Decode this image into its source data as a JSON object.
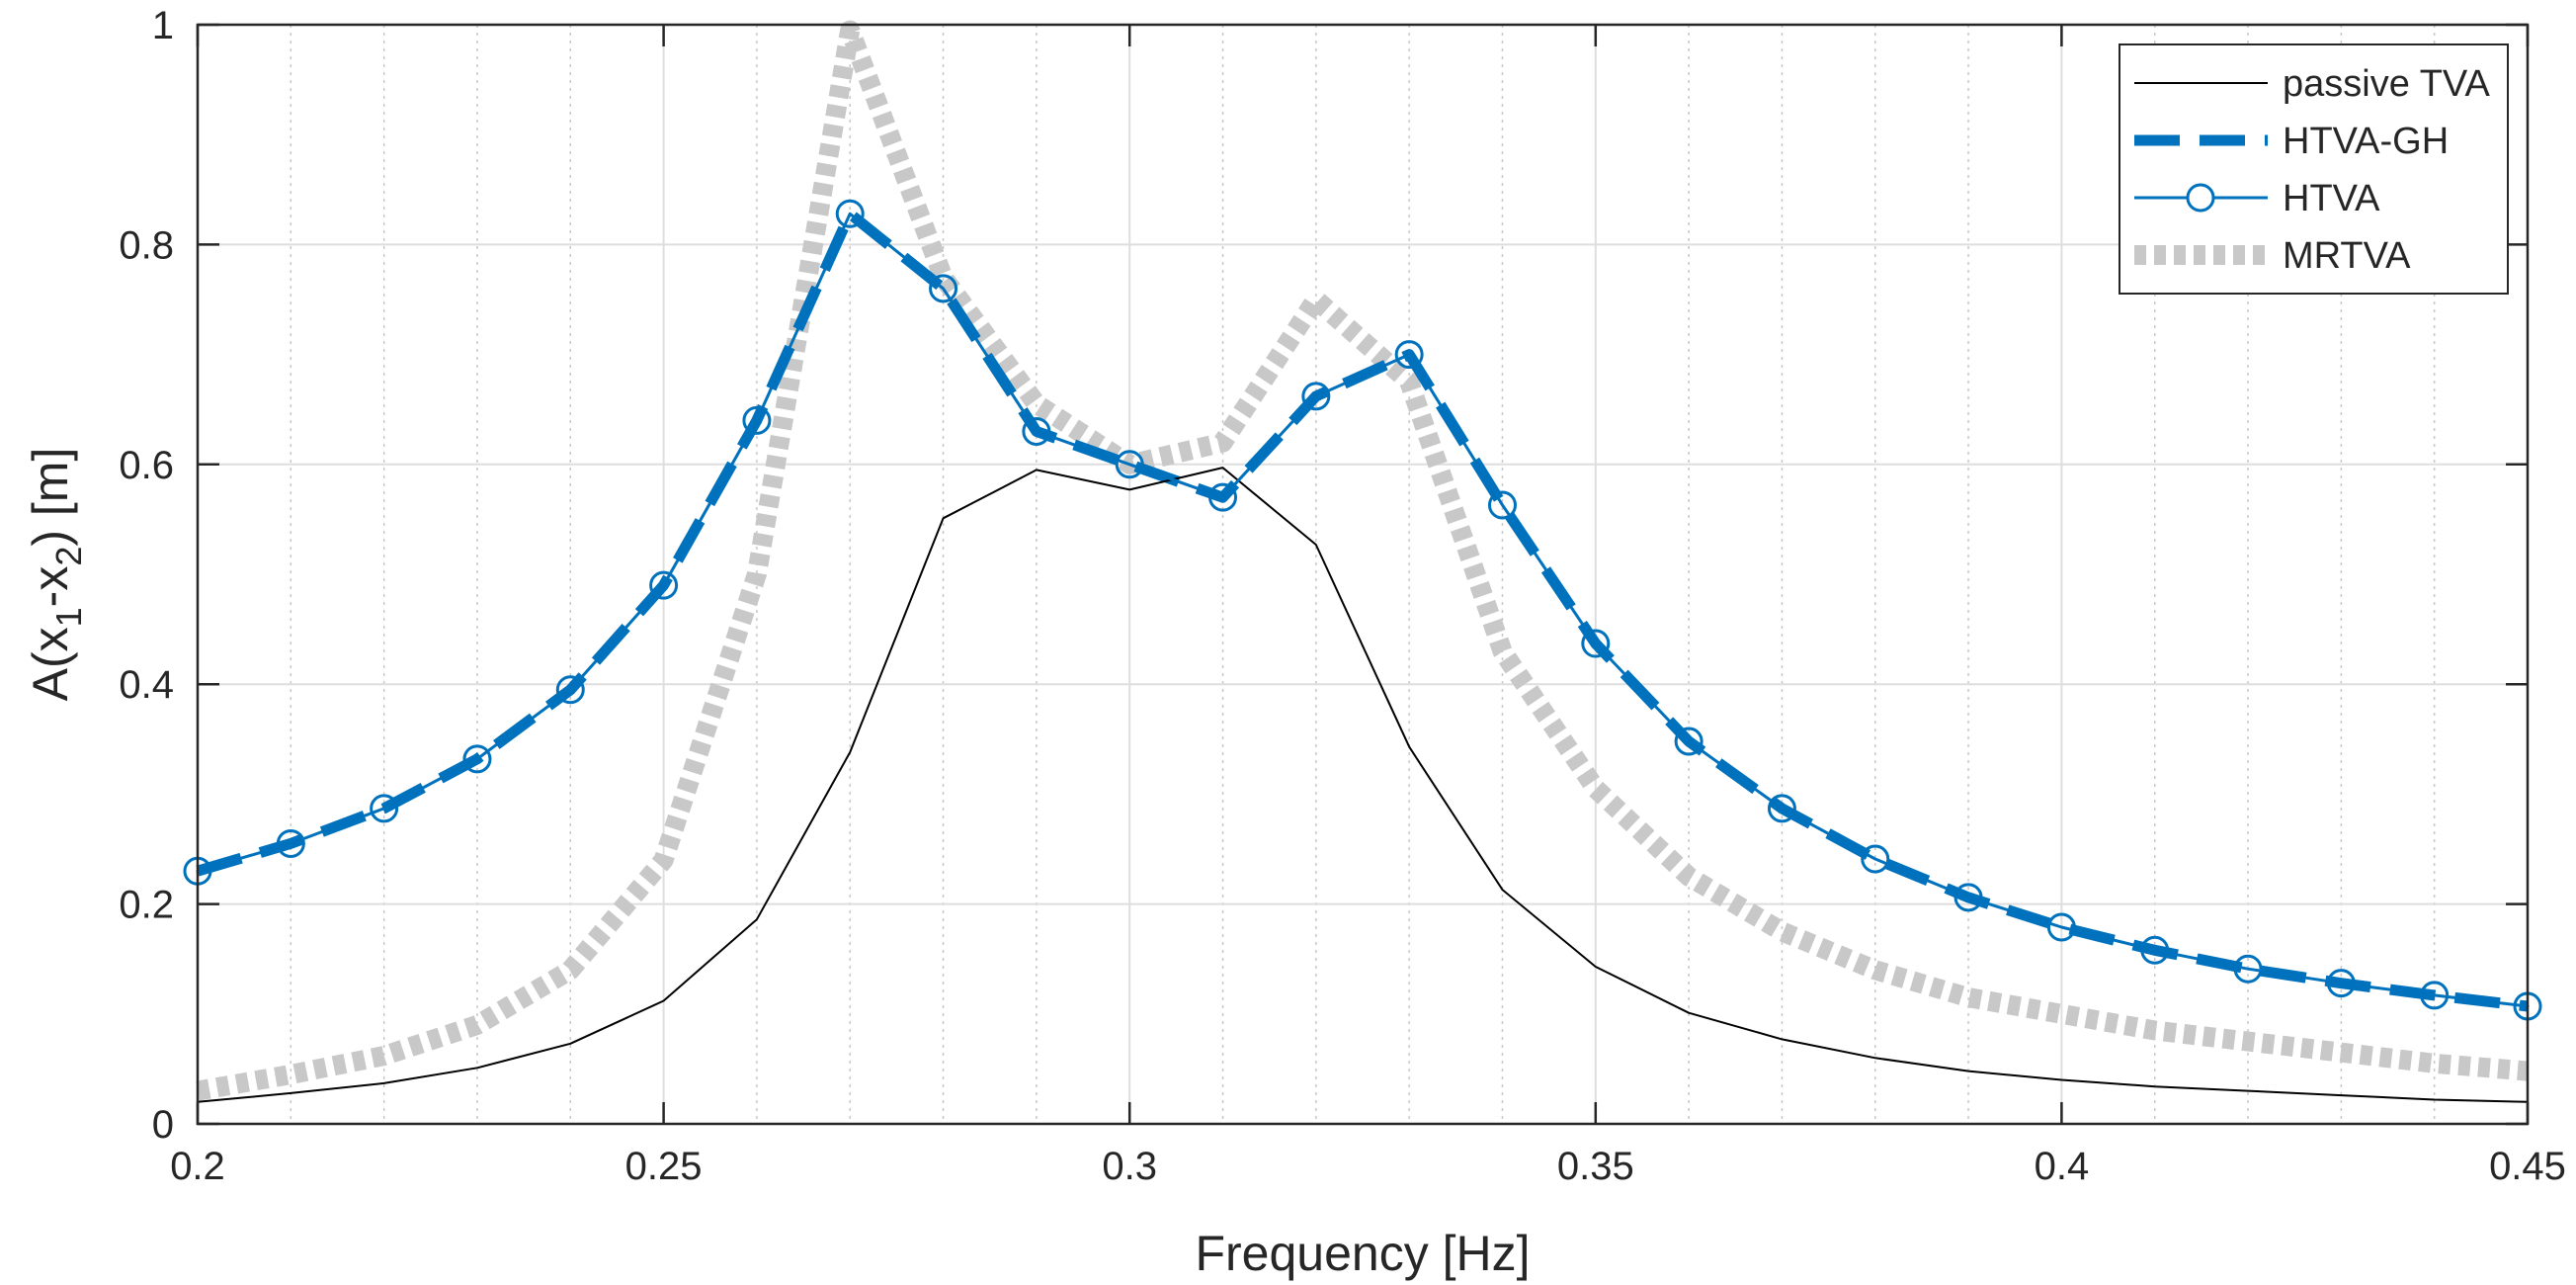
{
  "chart_data": {
    "type": "line",
    "title": "",
    "xlabel": "Frequency [Hz]",
    "ylabel_parts": [
      "A(x",
      "1",
      "-x",
      "2",
      ") [m]"
    ],
    "xlim": [
      0.2,
      0.45
    ],
    "ylim": [
      0,
      1
    ],
    "xticks": [
      0.2,
      0.25,
      0.3,
      0.35,
      0.4,
      0.45
    ],
    "xtick_labels": [
      "0.2",
      "0.25",
      "0.3",
      "0.35",
      "0.4",
      "0.45"
    ],
    "yticks": [
      0,
      0.2,
      0.4,
      0.6,
      0.8,
      1
    ],
    "ytick_labels": [
      "0",
      "0.2",
      "0.4",
      "0.6",
      "0.8",
      "1"
    ],
    "x_minor_gridlines": [
      0.21,
      0.22,
      0.23,
      0.24,
      0.26,
      0.27,
      0.28,
      0.29,
      0.31,
      0.32,
      0.33,
      0.34,
      0.36,
      0.37,
      0.38,
      0.39,
      0.41,
      0.42,
      0.43,
      0.44
    ],
    "grid": true,
    "legend_position": "top-right",
    "x": [
      0.2,
      0.21,
      0.22,
      0.23,
      0.24,
      0.25,
      0.26,
      0.27,
      0.28,
      0.29,
      0.3,
      0.31,
      0.32,
      0.33,
      0.34,
      0.35,
      0.36,
      0.37,
      0.38,
      0.39,
      0.4,
      0.41,
      0.42,
      0.43,
      0.44,
      0.45
    ],
    "series": [
      {
        "name": "passive TVA",
        "color": "#000000",
        "style": "thin-solid",
        "values": [
          0.02,
          0.028,
          0.037,
          0.051,
          0.073,
          0.112,
          0.186,
          0.338,
          0.551,
          0.595,
          0.577,
          0.597,
          0.527,
          0.343,
          0.213,
          0.143,
          0.101,
          0.077,
          0.06,
          0.048,
          0.04,
          0.034,
          0.03,
          0.026,
          0.022,
          0.02
        ]
      },
      {
        "name": "HTVA-GH",
        "color": "#0072BD",
        "style": "thick-dashed",
        "values": [
          0.23,
          0.255,
          0.287,
          0.332,
          0.395,
          0.49,
          0.64,
          0.828,
          0.76,
          0.63,
          0.6,
          0.57,
          0.662,
          0.7,
          0.563,
          0.437,
          0.348,
          0.287,
          0.241,
          0.206,
          0.179,
          0.158,
          0.141,
          0.128,
          0.117,
          0.107
        ]
      },
      {
        "name": "HTVA",
        "color": "#0072BD",
        "style": "solid-circle-markers",
        "values": [
          0.23,
          0.255,
          0.287,
          0.332,
          0.395,
          0.49,
          0.64,
          0.828,
          0.76,
          0.63,
          0.6,
          0.57,
          0.662,
          0.7,
          0.563,
          0.437,
          0.348,
          0.287,
          0.241,
          0.206,
          0.179,
          0.158,
          0.141,
          0.128,
          0.117,
          0.107
        ]
      },
      {
        "name": "MRTVA",
        "color": "#C8C8C8",
        "style": "thick-dotted",
        "values": [
          0.03,
          0.045,
          0.062,
          0.09,
          0.14,
          0.24,
          0.5,
          0.995,
          0.77,
          0.655,
          0.6,
          0.62,
          0.75,
          0.675,
          0.43,
          0.305,
          0.225,
          0.175,
          0.14,
          0.115,
          0.1,
          0.085,
          0.075,
          0.065,
          0.055,
          0.048
        ]
      }
    ]
  }
}
